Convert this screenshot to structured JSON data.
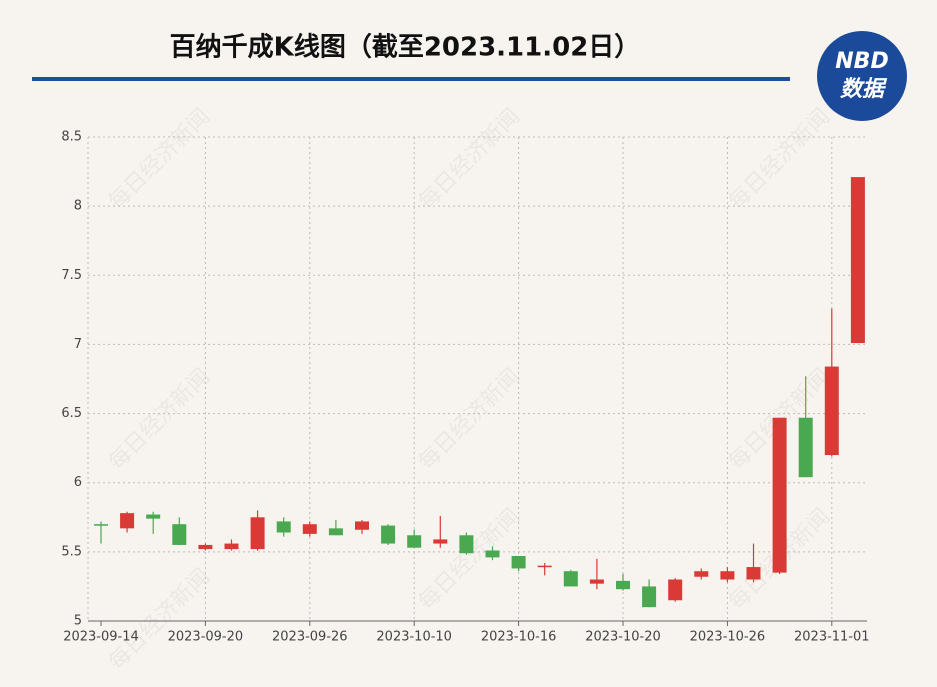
{
  "title": "百纳千成K线图（截至2023.11.02日）",
  "logo": {
    "top": "NBD",
    "bottom": "数据"
  },
  "watermark": "每日经济新闻",
  "chart_data": {
    "type": "candlestick",
    "categories": [
      "2023-09-14",
      null,
      null,
      null,
      "2023-09-20",
      null,
      null,
      null,
      "2023-09-26",
      null,
      null,
      null,
      "2023-10-10",
      null,
      null,
      null,
      "2023-10-16",
      null,
      null,
      null,
      "2023-10-20",
      null,
      null,
      null,
      "2023-10-26",
      null,
      null,
      null,
      "2023-11-01",
      null
    ],
    "open": [
      5.7,
      5.67,
      5.77,
      5.7,
      5.52,
      5.52,
      5.52,
      5.72,
      5.63,
      5.67,
      5.66,
      5.69,
      5.62,
      5.56,
      5.62,
      5.51,
      5.47,
      5.39,
      5.36,
      5.27,
      5.29,
      5.25,
      5.15,
      5.32,
      5.3,
      5.3,
      5.35,
      6.47,
      6.2,
      7.01
    ],
    "close": [
      5.69,
      5.78,
      5.74,
      5.55,
      5.55,
      5.56,
      5.75,
      5.64,
      5.7,
      5.62,
      5.72,
      5.56,
      5.53,
      5.59,
      5.49,
      5.46,
      5.38,
      5.4,
      5.25,
      5.3,
      5.23,
      5.1,
      5.3,
      5.36,
      5.36,
      5.39,
      6.47,
      6.04,
      6.84,
      8.21
    ],
    "low": [
      5.56,
      5.64,
      5.63,
      5.55,
      5.51,
      5.51,
      5.51,
      5.61,
      5.61,
      5.62,
      5.63,
      5.55,
      5.53,
      5.53,
      5.48,
      5.44,
      5.36,
      5.33,
      5.25,
      5.23,
      5.22,
      5.1,
      5.14,
      5.3,
      5.28,
      5.28,
      5.34,
      6.04,
      6.19,
      7.01
    ],
    "high": [
      5.72,
      5.79,
      5.79,
      5.75,
      5.56,
      5.59,
      5.8,
      5.75,
      5.72,
      5.73,
      5.73,
      5.7,
      5.66,
      5.76,
      5.64,
      5.54,
      5.47,
      5.42,
      5.37,
      5.45,
      5.34,
      5.3,
      5.31,
      5.38,
      5.39,
      5.56,
      6.47,
      6.77,
      7.26,
      8.21
    ],
    "up_color": "#d93a35",
    "down_color": "#4aa850",
    "ylim": [
      5,
      8.5
    ],
    "yticks": [
      5,
      5.5,
      6,
      6.5,
      7,
      7.5,
      8,
      8.5
    ],
    "grid": true
  }
}
